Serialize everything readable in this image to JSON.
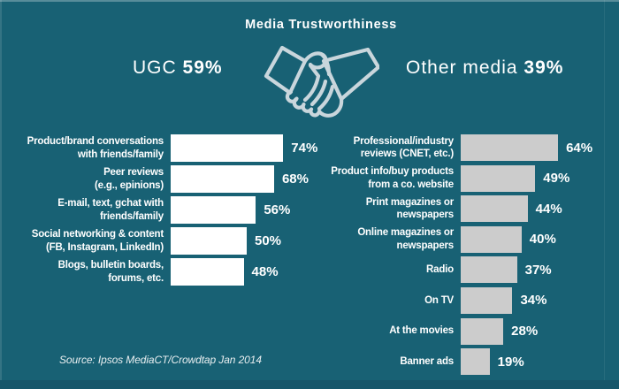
{
  "title": "Media Trustworthiness",
  "summary": {
    "ugc_label": "UGC",
    "ugc_value": "59%",
    "other_label": "Other media",
    "other_value": "39%"
  },
  "source": "Source: Ipsos MediaCT/Crowdtap Jan 2014",
  "colors": {
    "background": "#186174",
    "footer_strip": "#16566a",
    "ugc_bar": "#ffffff",
    "other_bar": "#cccccc",
    "icon": "#c9d6dc",
    "text": "#ffffff"
  },
  "chart_data": {
    "type": "bar",
    "orientation": "horizontal",
    "unit": "%",
    "title": "Media Trustworthiness",
    "series": [
      {
        "name": "UGC",
        "total": 59,
        "color": "#ffffff",
        "items": [
          {
            "label": "Product/brand conversations\nwith friends/family",
            "value": 74
          },
          {
            "label": "Peer reviews\n(e.g., epinions)",
            "value": 68
          },
          {
            "label": "E-mail, text, gchat with\nfriends/family",
            "value": 56
          },
          {
            "label": "Social networking & content\n(FB, Instagram, LinkedIn)",
            "value": 50
          },
          {
            "label": "Blogs, bulletin boards,\nforums, etc.",
            "value": 48
          }
        ]
      },
      {
        "name": "Other media",
        "total": 39,
        "color": "#cccccc",
        "items": [
          {
            "label": "Professional/industry\nreviews (CNET, etc.)",
            "value": 64
          },
          {
            "label": "Product info/buy products\nfrom a co. website",
            "value": 49
          },
          {
            "label": "Print magazines or\nnewspapers",
            "value": 44
          },
          {
            "label": "Online magazines or\nnewspapers",
            "value": 40
          },
          {
            "label": "Radio",
            "value": 37
          },
          {
            "label": "On TV",
            "value": 34
          },
          {
            "label": "At the movies",
            "value": 28
          },
          {
            "label": "Banner ads",
            "value": 19
          }
        ]
      }
    ]
  }
}
